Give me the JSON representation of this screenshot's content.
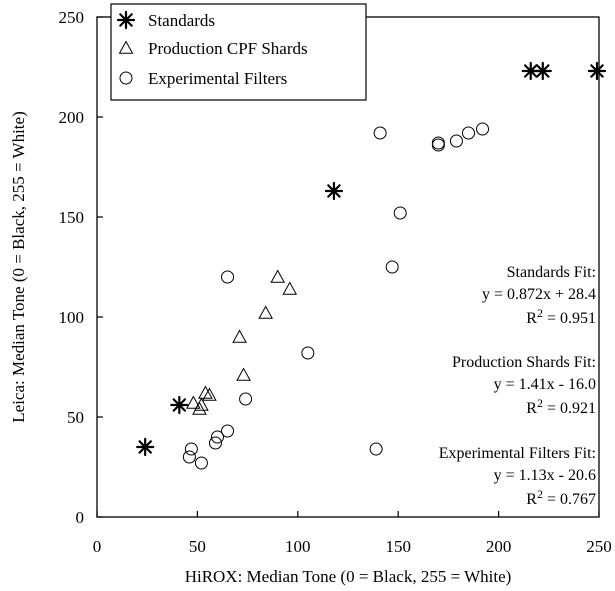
{
  "chart_data": {
    "type": "scatter",
    "xlabel": "HiROX: Median Tone (0 = Black, 255 = White)",
    "ylabel": "Leica: Median Tone (0 = Black, 255 = White)",
    "xlim": [
      0,
      250
    ],
    "ylim": [
      0,
      250
    ],
    "xticks": [
      0,
      50,
      100,
      150,
      200,
      250
    ],
    "yticks": [
      0,
      50,
      100,
      150,
      200,
      250
    ],
    "grid": false,
    "legend_position": "top-left",
    "series": [
      {
        "name": "Standards",
        "marker": "star",
        "points": [
          [
            24,
            35
          ],
          [
            41,
            56
          ],
          [
            118,
            163
          ],
          [
            216,
            223
          ],
          [
            222,
            223
          ],
          [
            249,
            223
          ]
        ]
      },
      {
        "name": "Production CPF Shards",
        "marker": "triangle",
        "points": [
          [
            48,
            57
          ],
          [
            51,
            54
          ],
          [
            52,
            56
          ],
          [
            54,
            62
          ],
          [
            56,
            61
          ],
          [
            71,
            90
          ],
          [
            73,
            71
          ],
          [
            84,
            102
          ],
          [
            90,
            120
          ],
          [
            96,
            114
          ]
        ]
      },
      {
        "name": "Experimental Filters",
        "marker": "circle",
        "points": [
          [
            46,
            30
          ],
          [
            47,
            34
          ],
          [
            52,
            27
          ],
          [
            59,
            37
          ],
          [
            60,
            40
          ],
          [
            65,
            43
          ],
          [
            65,
            120
          ],
          [
            74,
            59
          ],
          [
            105,
            82
          ],
          [
            139,
            34
          ],
          [
            141,
            192
          ],
          [
            147,
            125
          ],
          [
            151,
            152
          ],
          [
            170,
            187
          ],
          [
            170,
            186
          ],
          [
            179,
            188
          ],
          [
            185,
            192
          ],
          [
            192,
            194
          ]
        ]
      }
    ],
    "annotations": [
      {
        "lines": [
          "Standards Fit:",
          "y = 0.872x + 28.4"
        ],
        "r2_prefix": "R",
        "r2_sup": "2",
        "r2_value": " = 0.951"
      },
      {
        "lines": [
          "Production Shards Fit:",
          "y = 1.41x - 16.0"
        ],
        "r2_prefix": "R",
        "r2_sup": "2",
        "r2_value": " = 0.921"
      },
      {
        "lines": [
          "Experimental Filters Fit:",
          "y = 1.13x - 20.6"
        ],
        "r2_prefix": "R",
        "r2_sup": "2",
        "r2_value": " = 0.767"
      }
    ]
  }
}
